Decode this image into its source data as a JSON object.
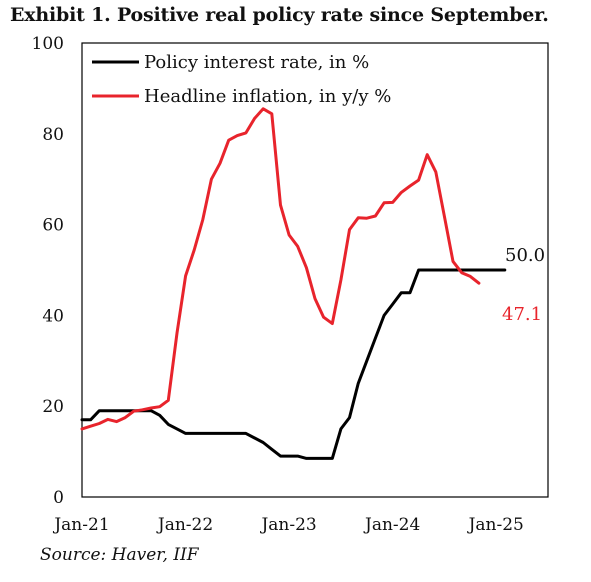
{
  "title": "Exhibit 1. Positive real policy rate since September.",
  "source": "Source: Haver, IIF",
  "chart_data": {
    "type": "line",
    "title": "Exhibit 1. Positive real policy rate since September.",
    "xlabel": "",
    "ylabel": "",
    "x_ticks": [
      {
        "label": "Jan-21",
        "value": 2021.0
      },
      {
        "label": "Jan-22",
        "value": 2022.0
      },
      {
        "label": "Jan-23",
        "value": 2023.0
      },
      {
        "label": "Jan-24",
        "value": 2024.0
      },
      {
        "label": "Jan-25",
        "value": 2025.0
      }
    ],
    "xlim": [
      2021.0,
      2025.5
    ],
    "y_ticks": [
      0,
      20,
      40,
      60,
      80,
      100
    ],
    "ylim": [
      0,
      100
    ],
    "grid": false,
    "legend_position": "top-left",
    "series": [
      {
        "name": "Policy interest rate, in %",
        "color": "#000000",
        "end_label": "50.0",
        "points": [
          [
            2021.0,
            17
          ],
          [
            2021.083,
            17
          ],
          [
            2021.167,
            19
          ],
          [
            2021.25,
            19
          ],
          [
            2021.333,
            19
          ],
          [
            2021.417,
            19
          ],
          [
            2021.5,
            19
          ],
          [
            2021.583,
            19
          ],
          [
            2021.667,
            19
          ],
          [
            2021.75,
            18
          ],
          [
            2021.833,
            16
          ],
          [
            2021.917,
            15
          ],
          [
            2022.0,
            14
          ],
          [
            2022.5,
            14
          ],
          [
            2022.583,
            14
          ],
          [
            2022.667,
            13
          ],
          [
            2022.75,
            12
          ],
          [
            2022.833,
            10.5
          ],
          [
            2022.917,
            9
          ],
          [
            2023.0,
            9
          ],
          [
            2023.083,
            9
          ],
          [
            2023.167,
            8.5
          ],
          [
            2023.25,
            8.5
          ],
          [
            2023.333,
            8.5
          ],
          [
            2023.417,
            8.5
          ],
          [
            2023.5,
            15
          ],
          [
            2023.583,
            17.5
          ],
          [
            2023.667,
            25
          ],
          [
            2023.75,
            30
          ],
          [
            2023.833,
            35
          ],
          [
            2023.917,
            40
          ],
          [
            2024.0,
            42.5
          ],
          [
            2024.083,
            45
          ],
          [
            2024.167,
            45
          ],
          [
            2024.25,
            50
          ],
          [
            2024.333,
            50
          ],
          [
            2024.917,
            50
          ],
          [
            2025.0,
            50
          ],
          [
            2025.083,
            50
          ]
        ]
      },
      {
        "name": "Headline inflation, in y/y %",
        "color": "#e8242c",
        "end_label": "47.1",
        "points": [
          [
            2021.0,
            15
          ],
          [
            2021.083,
            15.6
          ],
          [
            2021.167,
            16.2
          ],
          [
            2021.25,
            17.1
          ],
          [
            2021.333,
            16.6
          ],
          [
            2021.417,
            17.5
          ],
          [
            2021.5,
            18.9
          ],
          [
            2021.583,
            19.2
          ],
          [
            2021.667,
            19.6
          ],
          [
            2021.75,
            19.9
          ],
          [
            2021.833,
            21.3
          ],
          [
            2021.917,
            36.1
          ],
          [
            2022.0,
            48.7
          ],
          [
            2022.083,
            54.4
          ],
          [
            2022.167,
            61.1
          ],
          [
            2022.25,
            70
          ],
          [
            2022.333,
            73.5
          ],
          [
            2022.417,
            78.6
          ],
          [
            2022.5,
            79.6
          ],
          [
            2022.583,
            80.2
          ],
          [
            2022.667,
            83.4
          ],
          [
            2022.75,
            85.5
          ],
          [
            2022.833,
            84.4
          ],
          [
            2022.917,
            64.3
          ],
          [
            2023.0,
            57.7
          ],
          [
            2023.083,
            55.2
          ],
          [
            2023.167,
            50.5
          ],
          [
            2023.25,
            43.7
          ],
          [
            2023.333,
            39.6
          ],
          [
            2023.417,
            38.2
          ],
          [
            2023.5,
            47.8
          ],
          [
            2023.583,
            58.9
          ],
          [
            2023.667,
            61.5
          ],
          [
            2023.75,
            61.4
          ],
          [
            2023.833,
            61.9
          ],
          [
            2023.917,
            64.8
          ],
          [
            2024.0,
            64.9
          ],
          [
            2024.083,
            67.1
          ],
          [
            2024.167,
            68.5
          ],
          [
            2024.25,
            69.8
          ],
          [
            2024.333,
            75.4
          ],
          [
            2024.417,
            71.6
          ],
          [
            2024.5,
            61.8
          ],
          [
            2024.583,
            51.9
          ],
          [
            2024.667,
            49.4
          ],
          [
            2024.75,
            48.6
          ],
          [
            2024.833,
            47.1
          ]
        ]
      }
    ]
  }
}
